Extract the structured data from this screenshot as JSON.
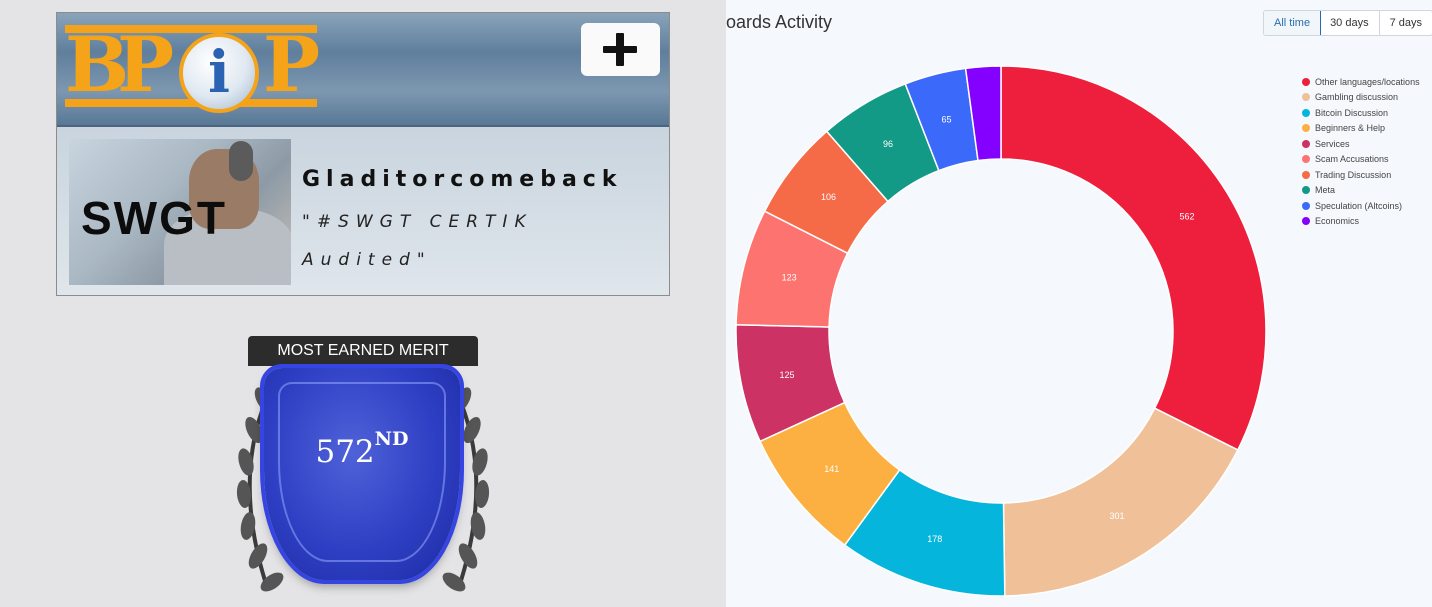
{
  "profile": {
    "logo_text": "BPiP",
    "add_button_icon": "plus-icon",
    "avatar_text": "SWGT",
    "username": "Gladitorcomeback",
    "personal_text": "\"#SWGT CERTIK Audited\""
  },
  "merit_badge": {
    "label": "MOST EARNED MERIT",
    "rank_number": "572",
    "rank_suffix": "ND",
    "color": "#2e3fc4"
  },
  "activity": {
    "title": "oards Activity",
    "ranges": [
      "All time",
      "30 days",
      "7 days"
    ],
    "selected_range": "All time"
  },
  "chart_data": {
    "type": "pie",
    "donut": true,
    "title": "oards Activity",
    "legend_position": "top-right",
    "categories": [
      "Other languages/locations",
      "Gambling discussion",
      "Bitcoin Discussion",
      "Beginners & Help",
      "Services",
      "Scam Accusations",
      "Trading Discussion",
      "Meta",
      "Speculation (Altcoins)",
      "Economics"
    ],
    "values": [
      562,
      301,
      178,
      141,
      125,
      123,
      106,
      96,
      65,
      37
    ],
    "labels": [
      "562",
      "301",
      "178",
      "141",
      "125",
      "123",
      "106",
      "96",
      "65",
      ""
    ],
    "colors": [
      "#ed1f3d",
      "#f0c199",
      "#06b5db",
      "#fdb042",
      "#cc3263",
      "#fc7370",
      "#f56b48",
      "#129a87",
      "#3b69fa",
      "#8400ff"
    ]
  }
}
